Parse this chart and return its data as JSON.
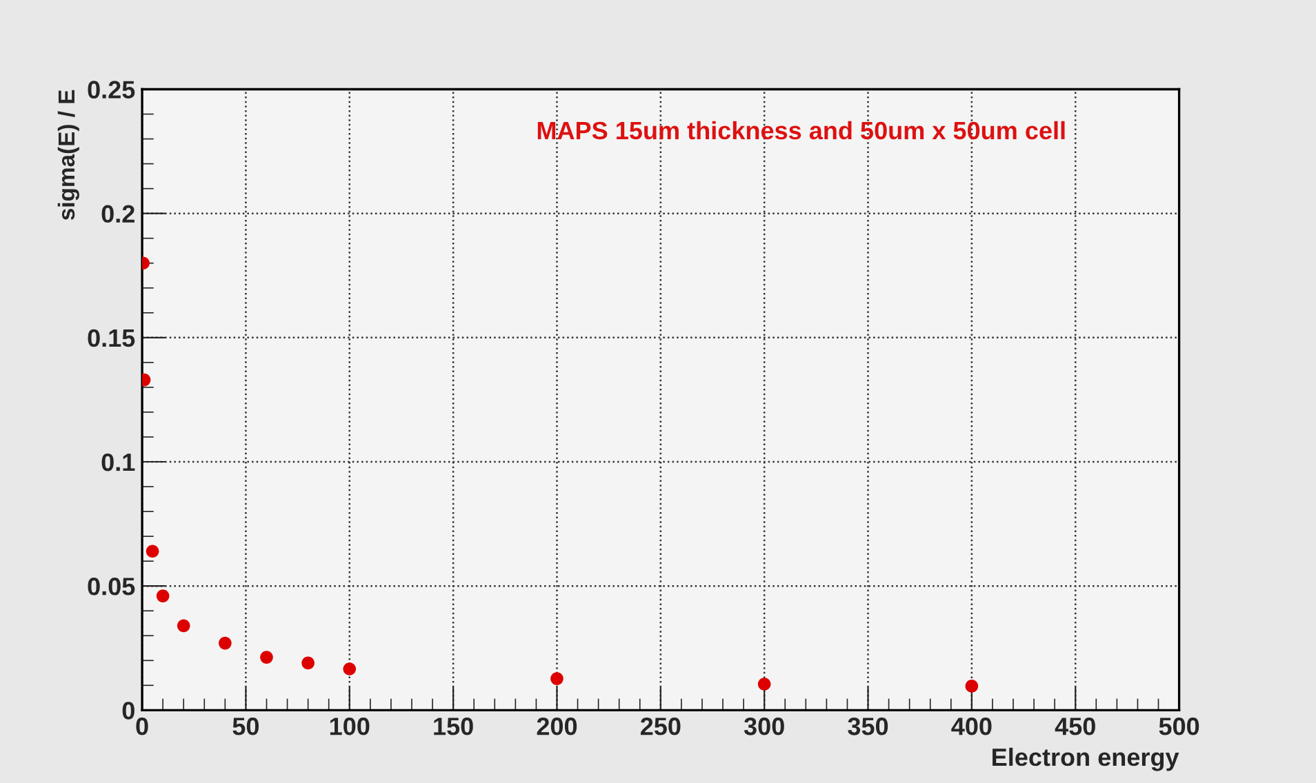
{
  "chart_data": {
    "type": "scatter",
    "xlabel": "Electron energy",
    "ylabel": "sigma(E) / E",
    "annotations": [
      "MAPS 15um thickness and 50um x 50um cell"
    ],
    "series": [
      {
        "color": "#dd0000",
        "x": [
          0.5,
          1,
          5,
          10,
          20,
          40,
          60,
          80,
          100,
          200,
          300,
          400
        ],
        "values": [
          0.18,
          0.133,
          0.064,
          0.046,
          0.034,
          0.027,
          0.0213,
          0.019,
          0.0166,
          0.0127,
          0.0105,
          0.0097
        ]
      }
    ],
    "xlim": [
      0,
      500
    ],
    "xticks": [
      0,
      50,
      100,
      150,
      200,
      250,
      300,
      350,
      400,
      450,
      500
    ],
    "ylim": [
      0,
      0.25
    ],
    "yticks": [
      0,
      0.05,
      0.1,
      0.15,
      0.2,
      0.25
    ],
    "grid": true,
    "marker": "circle"
  }
}
